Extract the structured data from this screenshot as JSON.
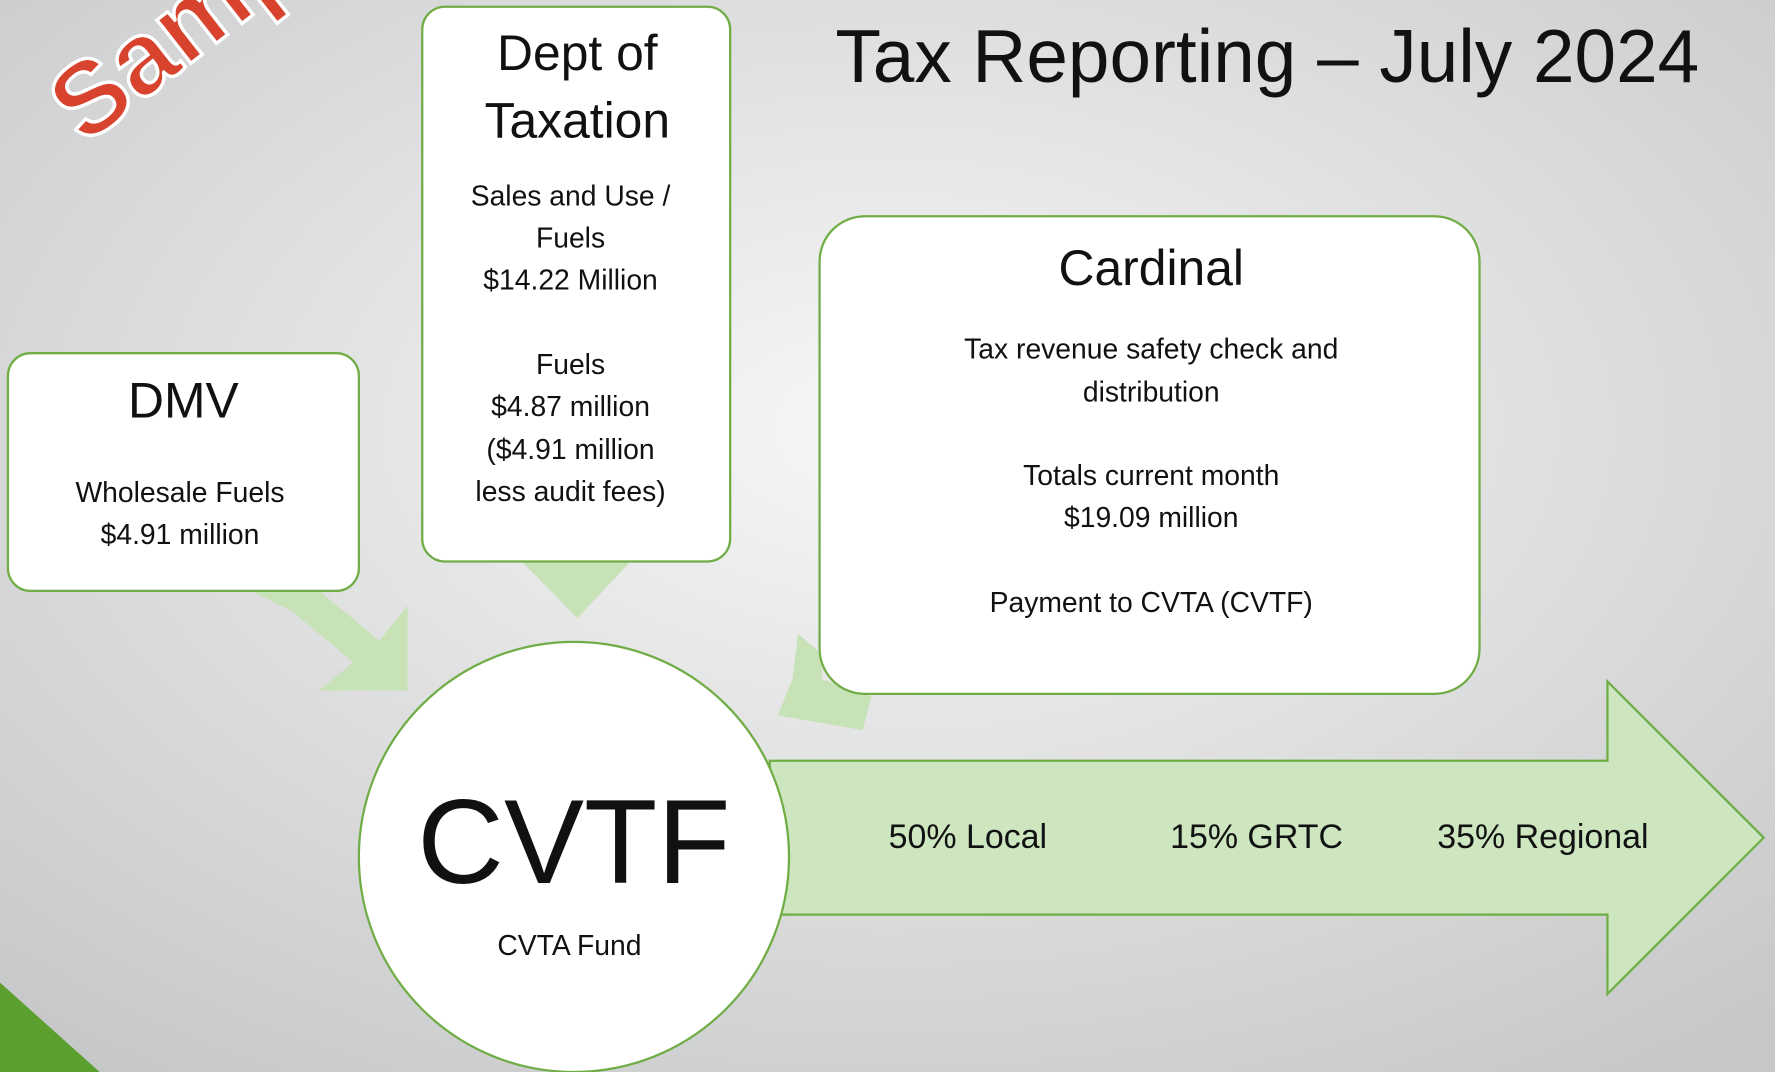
{
  "title": "Tax Reporting – July 2024",
  "watermark": "Sample",
  "dmv": {
    "title": "DMV",
    "lines": [
      "Wholesale Fuels",
      "$4.91 million"
    ]
  },
  "taxation": {
    "title": [
      "Dept of",
      "Taxation"
    ],
    "lines": [
      "Sales and Use /",
      "Fuels",
      "$14.22 Million",
      "Fuels",
      "$4.87 million",
      "($4.91 million",
      "less audit fees)"
    ]
  },
  "cardinal": {
    "title": "Cardinal",
    "lines": [
      "Tax revenue safety check and",
      "distribution",
      "Totals current month",
      "$19.09 million",
      "Payment to CVTA (CVTF)"
    ]
  },
  "fund": {
    "title": "CVTF",
    "subtitle": "CVTA Fund"
  },
  "distribution": [
    "50% Local",
    "15% GRTC",
    "35% Regional"
  ]
}
